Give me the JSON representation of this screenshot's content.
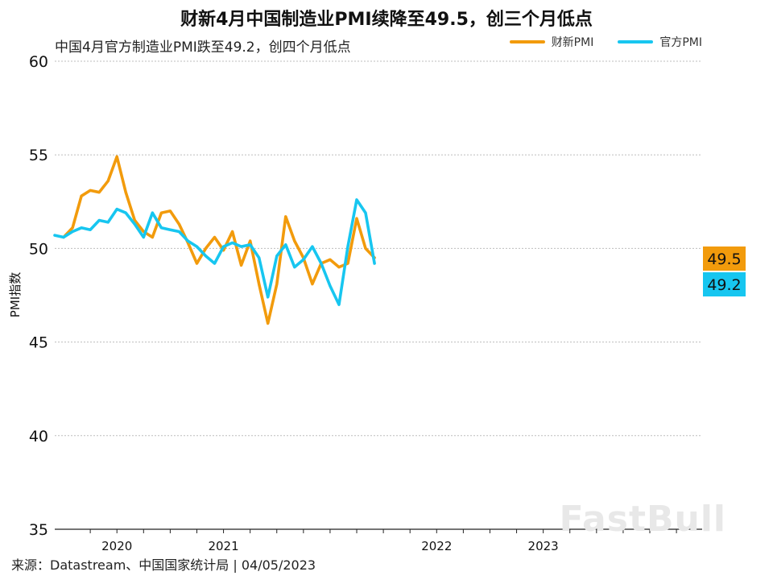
{
  "title": "财新4月中国制造业PMI续降至49.5，创三个月低点",
  "subtitle": "中国4月官方制造业PMI跌至49.2，创四个月低点",
  "source": "来源：Datastream、中国国家统计局 | 04/05/2023",
  "watermark": "FastBull",
  "chart_data": {
    "type": "line",
    "ylabel": "PMI指数",
    "ylim": [
      35,
      60
    ],
    "y_ticks": [
      35,
      40,
      45,
      50,
      55,
      60
    ],
    "x_ticks": [
      {
        "label": "2020",
        "index": 7
      },
      {
        "label": "2021",
        "index": 19
      },
      {
        "label": "2022",
        "index": 43
      },
      {
        "label": "2023",
        "index": 55
      }
    ],
    "legend_position": "top-right",
    "grid": true,
    "series": [
      {
        "name": "财新PMI",
        "color": "#f29b0c",
        "end_label": "49.5",
        "values": [
          50.6,
          51.1,
          52.8,
          53.1,
          53.0,
          53.6,
          54.9,
          53.0,
          51.5,
          50.9,
          50.6,
          51.9,
          52.0,
          51.3,
          50.3,
          49.2,
          50.0,
          50.6,
          49.9,
          50.9,
          49.1,
          50.4,
          48.1,
          46.0,
          48.1,
          51.7,
          50.4,
          49.5,
          48.1,
          49.2,
          49.4,
          49.0,
          49.2,
          51.6,
          50.0,
          49.5
        ]
      },
      {
        "name": "官方PMI",
        "color": "#17c6f0",
        "end_label": "49.2",
        "values": [
          50.7,
          50.6,
          50.9,
          51.1,
          51.0,
          51.5,
          51.4,
          52.1,
          51.9,
          51.3,
          50.6,
          51.9,
          51.1,
          51.0,
          50.9,
          50.4,
          50.1,
          49.6,
          49.2,
          50.1,
          50.3,
          50.1,
          50.2,
          49.5,
          47.4,
          49.6,
          50.2,
          49.0,
          49.4,
          50.1,
          49.2,
          48.0,
          47.0,
          50.1,
          52.6,
          51.9,
          49.2
        ]
      }
    ]
  }
}
